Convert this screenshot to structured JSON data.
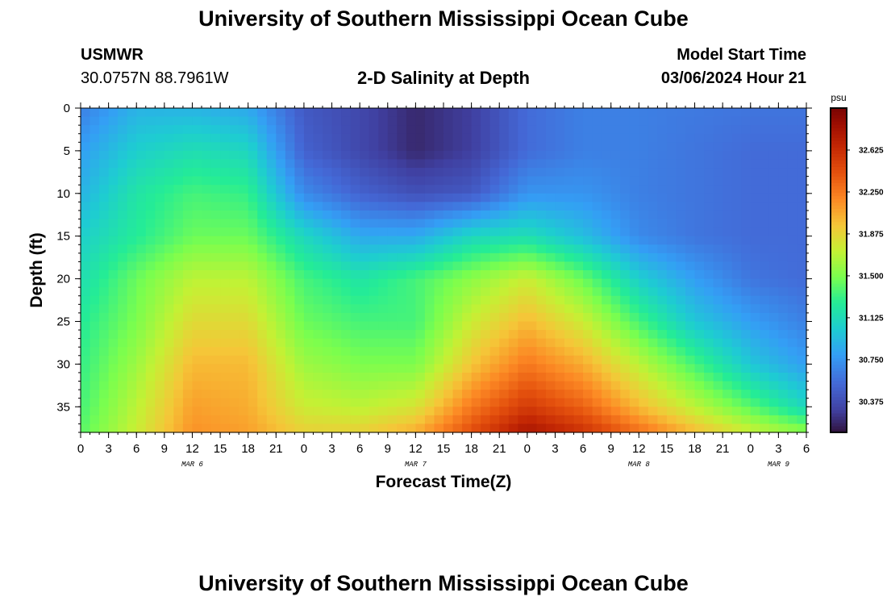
{
  "header": {
    "title": "University of Southern Mississippi Ocean Cube",
    "station_name": "USMWR",
    "station_coords": "30.0757N  88.7961W",
    "chart_title": "2-D Salinity at Depth",
    "start_label": "Model Start Time",
    "start_value": "03/06/2024 Hour 21"
  },
  "footer": {
    "title": "University of Southern Mississippi Ocean Cube"
  },
  "chart_data": {
    "type": "heatmap",
    "title": "2-D Salinity at Depth",
    "xlabel": "Forecast Time(Z)",
    "ylabel": "Depth (ft)",
    "x_ticks": [
      "0",
      "3",
      "6",
      "9",
      "12",
      "15",
      "18",
      "21",
      "0",
      "3",
      "6",
      "9",
      "12",
      "15",
      "18",
      "21",
      "0",
      "3",
      "6",
      "9",
      "12",
      "15",
      "18",
      "21",
      "0",
      "3",
      "6"
    ],
    "x_range_hours": [
      0,
      78
    ],
    "day_labels": [
      {
        "label": "MAR 6",
        "hour": 12
      },
      {
        "label": "MAR 7",
        "hour": 36
      },
      {
        "label": "MAR 8",
        "hour": 60
      },
      {
        "label": "MAR 9",
        "hour": 75
      }
    ],
    "y_ticks": [
      "0",
      "5",
      "10",
      "15",
      "20",
      "25",
      "30",
      "35"
    ],
    "y_range_ft": [
      0,
      38
    ],
    "colorbar": {
      "unit": "psu",
      "range": [
        30.1,
        33.0
      ],
      "ticks": [
        "32.625",
        "32.250",
        "31.875",
        "31.500",
        "31.125",
        "30.750",
        "30.375"
      ]
    },
    "grid_hours": [
      0,
      6,
      12,
      18,
      24,
      30,
      36,
      42,
      48,
      54,
      60,
      66,
      72,
      78
    ],
    "grid_depths_ft": [
      0,
      5,
      10,
      15,
      20,
      25,
      30,
      35,
      38
    ],
    "salinity_psu": [
      [
        30.65,
        30.9,
        30.9,
        30.85,
        30.45,
        30.35,
        30.2,
        30.3,
        30.55,
        30.65,
        30.65,
        30.62,
        30.6,
        30.6
      ],
      [
        30.8,
        31.05,
        31.15,
        31.1,
        30.5,
        30.35,
        30.2,
        30.3,
        30.55,
        30.65,
        30.65,
        30.6,
        30.55,
        30.55
      ],
      [
        30.9,
        31.2,
        31.35,
        31.3,
        30.7,
        30.5,
        30.4,
        30.45,
        30.75,
        30.75,
        30.65,
        30.6,
        30.55,
        30.55
      ],
      [
        31.05,
        31.25,
        31.45,
        31.45,
        31.1,
        30.85,
        30.85,
        31.1,
        31.15,
        30.95,
        30.7,
        30.6,
        30.55,
        30.55
      ],
      [
        31.15,
        31.45,
        31.7,
        31.7,
        31.35,
        31.2,
        31.35,
        31.55,
        31.75,
        31.45,
        31.05,
        30.8,
        30.6,
        30.55
      ],
      [
        31.25,
        31.5,
        31.85,
        31.85,
        31.45,
        31.35,
        31.35,
        31.75,
        32.0,
        31.75,
        31.35,
        31.0,
        30.8,
        30.65
      ],
      [
        31.3,
        31.6,
        32.0,
        32.0,
        31.6,
        31.5,
        31.5,
        31.95,
        32.25,
        32.05,
        31.7,
        31.35,
        31.0,
        30.8
      ],
      [
        31.35,
        31.7,
        32.1,
        32.05,
        31.75,
        31.7,
        31.8,
        32.25,
        32.55,
        32.35,
        32.0,
        31.7,
        31.4,
        31.1
      ],
      [
        31.4,
        31.75,
        32.15,
        32.1,
        31.9,
        31.9,
        32.05,
        32.45,
        32.8,
        32.6,
        32.3,
        32.0,
        31.75,
        31.55
      ]
    ]
  }
}
